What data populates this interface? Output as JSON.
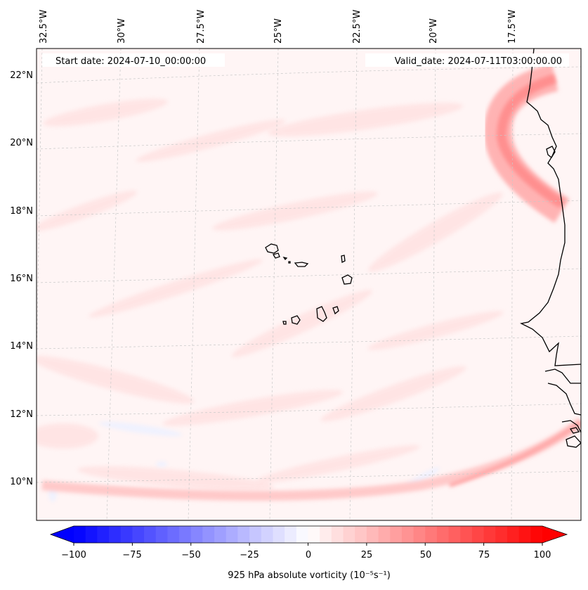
{
  "header": {
    "start_date": "Start date: 2024-07-10_00:00:00",
    "valid_date": "Valid_date: 2024-07-11T03:00:00.00"
  },
  "axes": {
    "longitude_labels": [
      "32.5°W",
      "30°W",
      "27.5°W",
      "25°W",
      "22.5°W",
      "20°W",
      "17.5°W"
    ],
    "latitude_labels": [
      "22°N",
      "20°N",
      "18°N",
      "16°N",
      "14°N",
      "12°N",
      "10°N"
    ]
  },
  "colorbar": {
    "label": "925 hPa absolute vorticity (10⁻⁵s⁻¹)",
    "tick_labels": [
      "−100",
      "−75",
      "−50",
      "−25",
      "0",
      "25",
      "50",
      "75",
      "100"
    ],
    "min": -100,
    "max": 100,
    "step": 5,
    "low_color": "#0000ff",
    "mid_color": "#ffffff",
    "high_color": "#ff0000"
  },
  "colors": {
    "background_field": "#fff5f5",
    "coastline": "#000000",
    "gridline": "#c8c8c8"
  }
}
